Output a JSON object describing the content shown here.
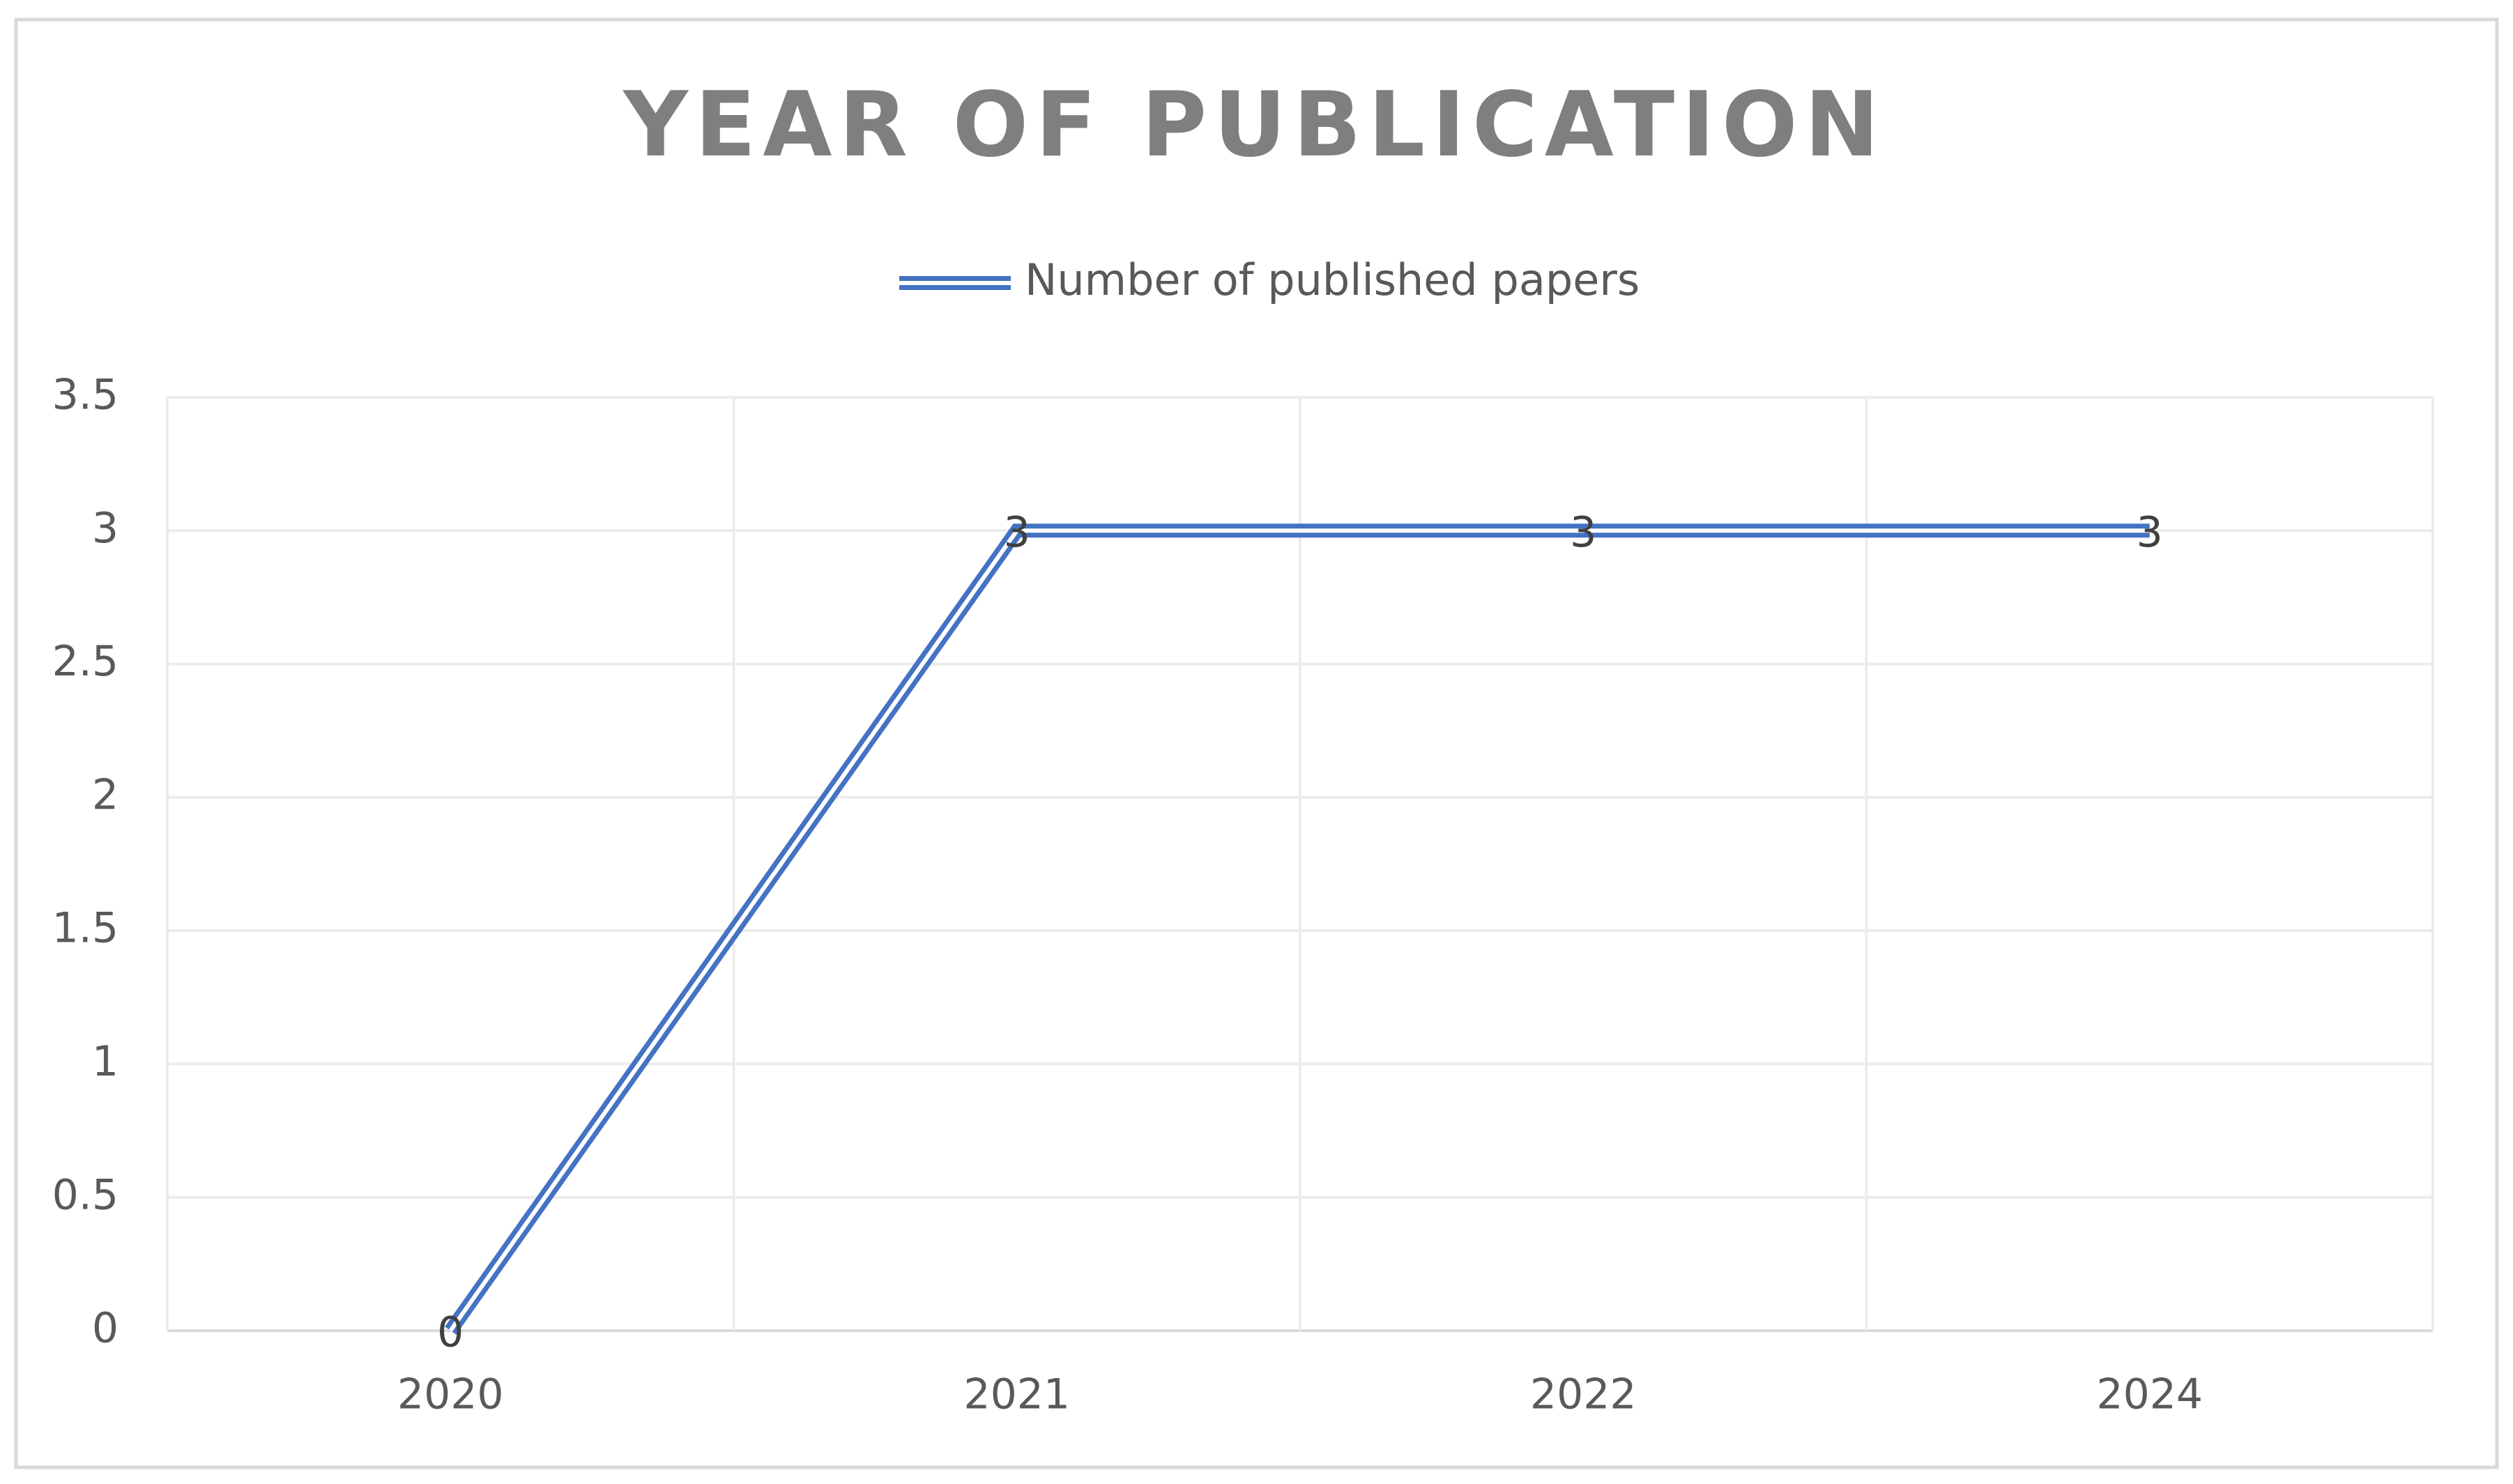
{
  "chart_data": {
    "type": "line",
    "title": "YEAR OF PUBLICATION",
    "categories": [
      "2020",
      "2021",
      "2022",
      "2024"
    ],
    "series": [
      {
        "name": "Number of published papers",
        "color": "#4472c4",
        "values": [
          0,
          3,
          3,
          3
        ]
      }
    ],
    "ylim": [
      0,
      3.5
    ],
    "yticks": [
      0,
      0.5,
      1,
      1.5,
      2,
      2.5,
      3,
      3.5
    ],
    "grid": true,
    "legend": "top",
    "data_labels": true
  }
}
